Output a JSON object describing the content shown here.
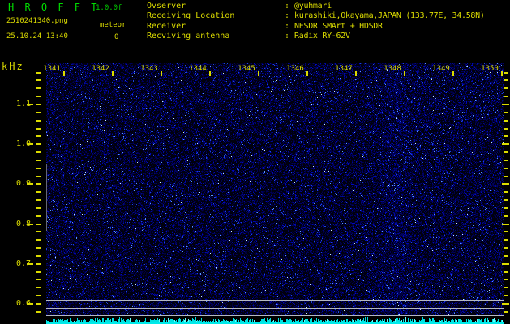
{
  "header": {
    "app_title": "H R O F F T",
    "version": "1.0.0f",
    "filename": "2510241340.png",
    "datetime": "25.10.24 13:40",
    "mode_label": "meteor",
    "event_count": "0",
    "info_rows": [
      {
        "label": "Ovserver",
        "value": "@yuhmari"
      },
      {
        "label": "Receiving Location",
        "value": "kurashiki,Okayama,JAPAN (133.77E, 34.58N)"
      },
      {
        "label": "Receiver",
        "value": "NESDR SMArt + HDSDR"
      },
      {
        "label": "Recviving antenna",
        "value": "Radix RY-62V"
      }
    ]
  },
  "spectrogram": {
    "y_axis_unit": "kHz",
    "y_tick_labels": [
      "1.1",
      "1.0",
      "0.9",
      "0.8",
      "0.7",
      "0.6"
    ],
    "y_range_khz": [
      0.57,
      1.2
    ],
    "x_tick_labels": [
      "1341",
      "1342",
      "1343",
      "1344",
      "1345",
      "1346",
      "1347",
      "1348",
      "1349",
      "1350"
    ],
    "x_axis_meaning": "time (HHMM)",
    "reference_lines_khz": [
      0.61,
      0.59,
      0.572
    ]
  },
  "colors": {
    "title_green": "#00dd00",
    "label_yellow": "#dcdc00",
    "noise_blue": "#0000aa",
    "strip_cyan": "#00e0e0",
    "ref_line_gray": "#b4b8c2"
  }
}
